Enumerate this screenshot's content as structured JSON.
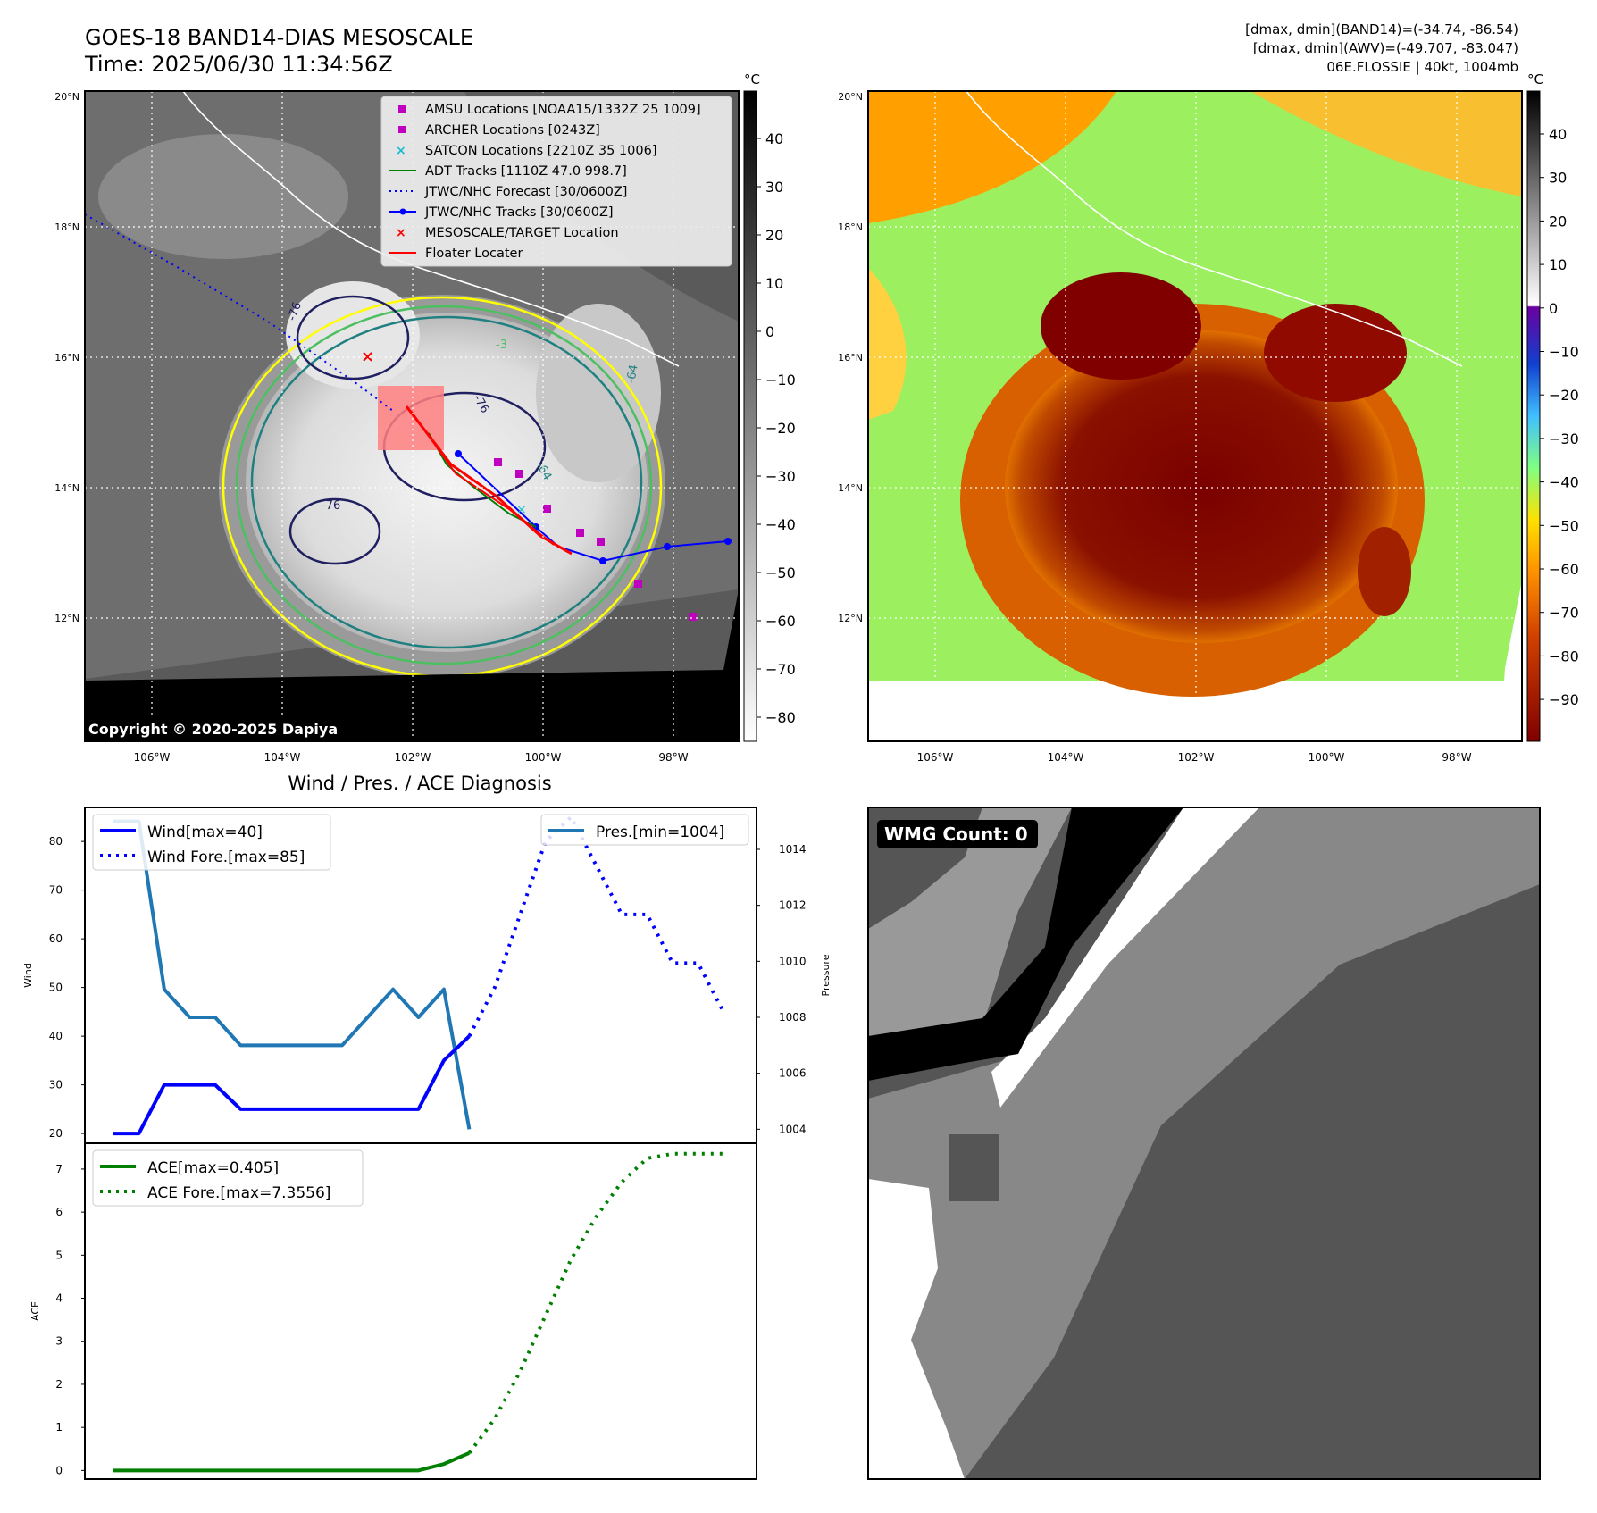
{
  "header": {
    "title_line1": "GOES-18 BAND14-DIAS MESOSCALE",
    "title_line2": "Time: 2025/06/30 11:34:56Z",
    "info_line1": "[dmax, dmin](BAND14)=(-34.74, -86.54)",
    "info_line2": "[dmax, dmin](AWV)=(-49.707, -83.047)",
    "info_line3": "06E.FLOSSIE | 40kt, 1004mb"
  },
  "colors": {
    "wind": "#0000ff",
    "pressure": "#1f77b4",
    "ace": "#008000",
    "jtwc_track": "#0000ff",
    "adt": "#008000",
    "floater": "#ff0000",
    "amsu": "#bf00bf",
    "satcon": "#17becf"
  },
  "map_ir": {
    "unit": "°C",
    "lat_ticks": [
      "20°N",
      "18°N",
      "16°N",
      "14°N",
      "12°N"
    ],
    "lon_ticks": [
      "106°W",
      "104°W",
      "102°W",
      "100°W",
      "98°W"
    ],
    "colorbar_ticks": [
      "40",
      "30",
      "20",
      "10",
      "0",
      "−10",
      "−20",
      "−30",
      "−40",
      "−50",
      "−60",
      "−70",
      "−80"
    ],
    "copyright": "Copyright © 2020-2025 Dapiya",
    "legend": [
      {
        "label": "AMSU Locations [NOAA15/1332Z 25 1009]",
        "marker": "square",
        "color": "#bf00bf"
      },
      {
        "label": "ARCHER Locations [0243Z]",
        "marker": "square",
        "color": "#bf00bf"
      },
      {
        "label": "SATCON Locations [2210Z 35 1006]",
        "marker": "x",
        "color": "#17becf"
      },
      {
        "label": "ADT Tracks [1110Z 47.0 998.7]",
        "marker": "line",
        "color": "#008000"
      },
      {
        "label": "JTWC/NHC Forecast [30/0600Z]",
        "marker": "dotted",
        "color": "#0000ff"
      },
      {
        "label": "JTWC/NHC Tracks [30/0600Z]",
        "marker": "line-dot",
        "color": "#0000ff"
      },
      {
        "label": "MESOSCALE/TARGET Location",
        "marker": "x",
        "color": "#ff0000"
      },
      {
        "label": "Floater Locater",
        "marker": "line",
        "color": "#ff0000"
      }
    ],
    "contour_labels": [
      "-76",
      "-64",
      "-76",
      "-64",
      "-3",
      "-76"
    ]
  },
  "map_awv": {
    "unit": "°C",
    "lat_ticks": [
      "20°N",
      "18°N",
      "16°N",
      "14°N",
      "12°N"
    ],
    "lon_ticks": [
      "106°W",
      "104°W",
      "102°W",
      "100°W",
      "98°W"
    ],
    "colorbar_ticks": [
      "40",
      "30",
      "20",
      "10",
      "0",
      "−10",
      "−20",
      "−30",
      "−40",
      "−50",
      "−60",
      "−70",
      "−80",
      "−90"
    ]
  },
  "diagnosis": {
    "title": "Wind / Pres. / ACE Diagnosis",
    "wind_axis_label": "Wind",
    "pressure_axis_label": "Pressure",
    "ace_axis_label": "ACE",
    "wind_ticks": [
      "80",
      "70",
      "60",
      "50",
      "40",
      "30",
      "20"
    ],
    "pressure_ticks": [
      "1014",
      "1012",
      "1010",
      "1008",
      "1006",
      "1004"
    ],
    "ace_ticks": [
      "7",
      "6",
      "5",
      "4",
      "3",
      "2",
      "1",
      "0"
    ],
    "legend_wind": "Wind[max=40]",
    "legend_wind_fore": "Wind Fore.[max=85]",
    "legend_pres": "Pres.[min=1004]",
    "legend_ace": "ACE[max=0.405]",
    "legend_ace_fore": "ACE Fore.[max=7.3556]"
  },
  "wmg": {
    "label": "WMG Count: 0"
  },
  "chart_data": [
    {
      "type": "line",
      "title": "Wind / Pres. / ACE Diagnosis",
      "ylabel": "Wind",
      "ylim": [
        18,
        87
      ],
      "series": [
        {
          "name": "Wind[max=40]",
          "x": [
            0,
            1,
            2,
            3,
            4,
            5,
            6,
            7,
            8,
            9,
            10,
            11,
            12,
            13,
            14
          ],
          "values": [
            20,
            20,
            30,
            30,
            30,
            25,
            25,
            25,
            25,
            25,
            25,
            25,
            25,
            35,
            40
          ]
        },
        {
          "name": "Wind Fore.[max=85]",
          "x": [
            14,
            15,
            16,
            17,
            18,
            19,
            20,
            21,
            22,
            23,
            24
          ],
          "values": [
            40,
            50,
            65,
            80,
            85,
            75,
            65,
            65,
            55,
            55,
            45
          ]
        }
      ]
    },
    {
      "type": "line",
      "ylabel": "Pressure",
      "ylim": [
        1003.5,
        1015.5
      ],
      "series": [
        {
          "name": "Pres.[min=1004]",
          "x": [
            0,
            1,
            2,
            3,
            4,
            5,
            6,
            7,
            8,
            9,
            10,
            11,
            12,
            13,
            14
          ],
          "values": [
            1015,
            1015,
            1009,
            1008,
            1008,
            1007,
            1007,
            1007,
            1007,
            1007,
            1008,
            1009,
            1008,
            1009,
            1004
          ]
        }
      ]
    },
    {
      "type": "line",
      "ylabel": "ACE",
      "ylim": [
        -0.2,
        7.6
      ],
      "series": [
        {
          "name": "ACE[max=0.405]",
          "x": [
            0,
            2,
            4,
            6,
            8,
            10,
            12,
            13,
            14
          ],
          "values": [
            0,
            0,
            0,
            0,
            0,
            0,
            0,
            0.15,
            0.405
          ]
        },
        {
          "name": "ACE Fore.[max=7.3556]",
          "x": [
            14,
            15,
            16,
            17,
            18,
            19,
            20,
            21,
            22,
            23,
            24
          ],
          "values": [
            0.405,
            1.2,
            2.3,
            3.6,
            4.9,
            5.9,
            6.7,
            7.25,
            7.3556,
            7.3556,
            7.3556
          ]
        }
      ]
    }
  ]
}
